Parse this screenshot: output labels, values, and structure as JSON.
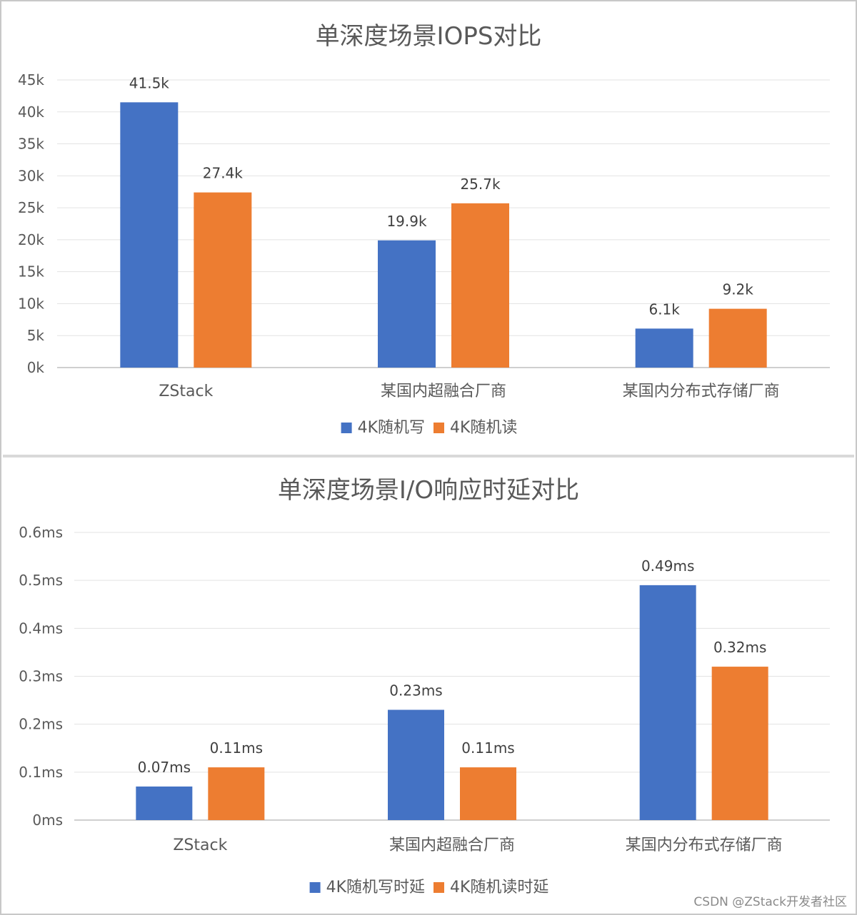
{
  "watermark": "CSDN @ZStack开发者社区",
  "chart_data": [
    {
      "type": "bar",
      "title": "单深度场景IOPS对比",
      "categories": [
        "ZStack",
        "某国内超融合厂商",
        "某国内分布式存储厂商"
      ],
      "series": [
        {
          "name": "4K随机写",
          "color": "#4472c4",
          "values": [
            41.5,
            19.9,
            6.1
          ],
          "labels": [
            "41.5k",
            "19.9k",
            "6.1k"
          ]
        },
        {
          "name": "4K随机读",
          "color": "#ed7d31",
          "values": [
            27.4,
            25.7,
            9.2
          ],
          "labels": [
            "27.4k",
            "25.7k",
            "9.2k"
          ]
        }
      ],
      "ylim": [
        0,
        45
      ],
      "yticks": [
        0,
        5,
        10,
        15,
        20,
        25,
        30,
        35,
        40,
        45
      ],
      "ytick_labels": [
        "0k",
        "5k",
        "10k",
        "15k",
        "20k",
        "25k",
        "30k",
        "35k",
        "40k",
        "45k"
      ],
      "grid": true,
      "legend": "bottom",
      "xlabel": "",
      "ylabel": ""
    },
    {
      "type": "bar",
      "title": "单深度场景I/O响应时延对比",
      "categories": [
        "ZStack",
        "某国内超融合厂商",
        "某国内分布式存储厂商"
      ],
      "series": [
        {
          "name": "4K随机写时延",
          "color": "#4472c4",
          "values": [
            0.07,
            0.23,
            0.49
          ],
          "labels": [
            "0.07ms",
            "0.23ms",
            "0.49ms"
          ]
        },
        {
          "name": "4K随机读时延",
          "color": "#ed7d31",
          "values": [
            0.11,
            0.11,
            0.32
          ],
          "labels": [
            "0.11ms",
            "0.11ms",
            "0.32ms"
          ]
        }
      ],
      "ylim": [
        0,
        0.6
      ],
      "yticks": [
        0,
        0.1,
        0.2,
        0.3,
        0.4,
        0.5,
        0.6
      ],
      "ytick_labels": [
        "0ms",
        "0.1ms",
        "0.2ms",
        "0.3ms",
        "0.4ms",
        "0.5ms",
        "0.6ms"
      ],
      "grid": true,
      "legend": "bottom",
      "xlabel": "",
      "ylabel": ""
    }
  ]
}
